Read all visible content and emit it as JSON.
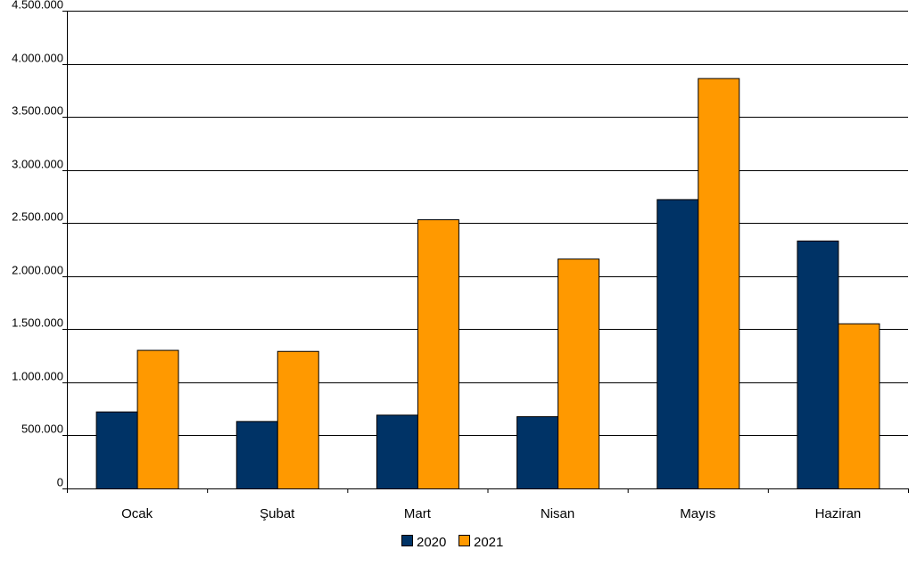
{
  "chart_data": {
    "type": "bar",
    "categories": [
      "Ocak",
      "Şubat",
      "Mart",
      "Nisan",
      "Mayıs",
      "Haziran"
    ],
    "series": [
      {
        "name": "2020",
        "color": "#003366",
        "values": [
          725000,
          635000,
          695000,
          680000,
          2725000,
          2335000
        ]
      },
      {
        "name": "2021",
        "color": "#ff9900",
        "values": [
          1305000,
          1295000,
          2535000,
          2165000,
          3865000,
          1555000
        ]
      }
    ],
    "ylim": [
      0,
      4500000
    ],
    "yticks": [
      0,
      500000,
      1000000,
      1500000,
      2000000,
      2500000,
      3000000,
      3500000,
      4000000,
      4500000
    ],
    "ytick_labels": [
      "0",
      "500.000",
      "1.000.000",
      "1.500.000",
      "2.000.000",
      "2.500.000",
      "3.000.000",
      "3.500.000",
      "4.000.000",
      "4.500.000"
    ],
    "grid": true,
    "legend": "bottom-center",
    "title": "",
    "xlabel": "",
    "ylabel": ""
  }
}
